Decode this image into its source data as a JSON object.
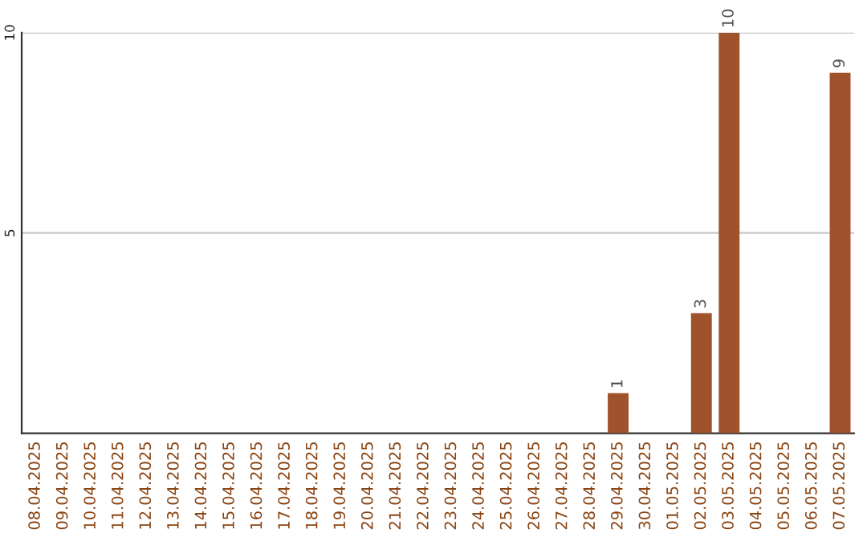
{
  "chart_data": {
    "type": "bar",
    "categories": [
      "08.04.2025",
      "09.04.2025",
      "10.04.2025",
      "11.04.2025",
      "12.04.2025",
      "13.04.2025",
      "14.04.2025",
      "15.04.2025",
      "16.04.2025",
      "17.04.2025",
      "18.04.2025",
      "19.04.2025",
      "20.04.2025",
      "21.04.2025",
      "22.04.2025",
      "23.04.2025",
      "24.04.2025",
      "25.04.2025",
      "26.04.2025",
      "27.04.2025",
      "28.04.2025",
      "29.04.2025",
      "30.04.2025",
      "01.05.2025",
      "02.05.2025",
      "03.05.2025",
      "04.05.2025",
      "05.05.2025",
      "06.05.2025",
      "07.05.2025"
    ],
    "values": [
      0,
      0,
      0,
      0,
      0,
      0,
      0,
      0,
      0,
      0,
      0,
      0,
      0,
      0,
      0,
      0,
      0,
      0,
      0,
      0,
      0,
      1,
      0,
      0,
      3,
      10,
      0,
      0,
      0,
      9
    ],
    "value_labels": [
      null,
      null,
      null,
      null,
      null,
      null,
      null,
      null,
      null,
      null,
      null,
      null,
      null,
      null,
      null,
      null,
      null,
      null,
      null,
      null,
      null,
      "1",
      null,
      null,
      "3",
      "10",
      null,
      null,
      null,
      "9"
    ],
    "color": "#a0522d",
    "ylim": [
      0,
      10
    ],
    "yticks": [
      5,
      10
    ],
    "grid": "y",
    "legend": false
  }
}
